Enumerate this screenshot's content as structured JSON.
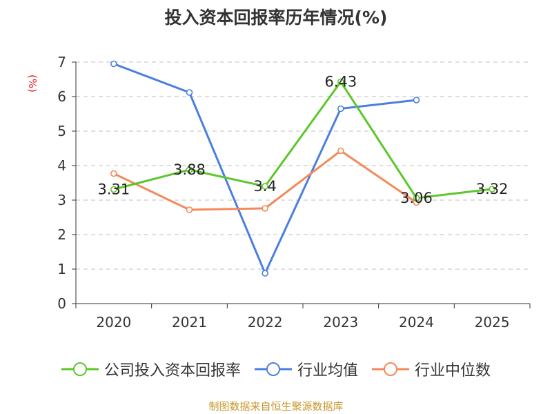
{
  "chart_data": {
    "type": "line",
    "title": "投入资本回报率历年情况(%)",
    "ylabel": "(%)",
    "xlabel": "",
    "categories": [
      "2020",
      "2021",
      "2022",
      "2023",
      "2024",
      "2025"
    ],
    "ylim": [
      0,
      7
    ],
    "yticks": [
      "0",
      "1",
      "2",
      "3",
      "4",
      "5",
      "6",
      "7"
    ],
    "grid": true,
    "legend_position": "bottom",
    "series": [
      {
        "name": "公司投入资本回报率",
        "color": "#5cc72a",
        "values": [
          3.31,
          3.88,
          3.4,
          6.43,
          3.06,
          3.32
        ],
        "labels": [
          "3.31",
          "3.88",
          "3.4",
          "6.43",
          "3.06",
          "3.32"
        ]
      },
      {
        "name": "行业均值",
        "color": "#4a7fde",
        "values": [
          6.95,
          6.12,
          0.88,
          5.65,
          5.9,
          null
        ]
      },
      {
        "name": "行业中位数",
        "color": "#f4895a",
        "values": [
          3.77,
          2.72,
          2.76,
          4.43,
          2.93,
          null
        ]
      }
    ]
  },
  "source": {
    "text": "制图数据来自恒生聚源数据库",
    "color": "#c8962c"
  }
}
